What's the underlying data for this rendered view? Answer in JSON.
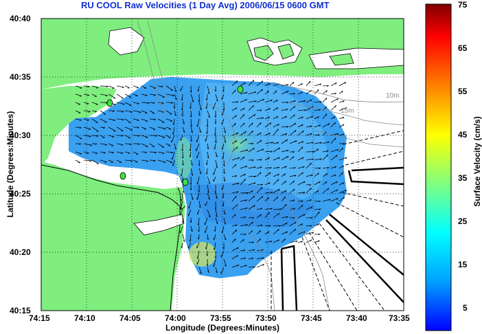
{
  "title": "RU COOL Raw Velocities (1 Day Avg) 2006/06/15 0600 GMT",
  "axes": {
    "xlabel": "Longitude (Degrees:Minutes)",
    "ylabel": "Latitude (Degrees:Minutes)",
    "xticks": [
      "74:15",
      "74:10",
      "74:05",
      "74:00",
      "73:55",
      "73:50",
      "73:45",
      "73:40",
      "73:35"
    ],
    "yticks": [
      "40:40",
      "40:35",
      "40:30",
      "40:25",
      "40:20",
      "40:15"
    ]
  },
  "colorbar": {
    "label": "Surface Velocity (cm/s)",
    "ticks": [
      "75",
      "65",
      "55",
      "45",
      "35",
      "25",
      "15",
      "5"
    ]
  },
  "depth_contours": [
    "10m",
    "15m"
  ],
  "colors": {
    "land": "#7fee7f",
    "water_blue": "#3aa0f0",
    "title": "#1030d0"
  }
}
